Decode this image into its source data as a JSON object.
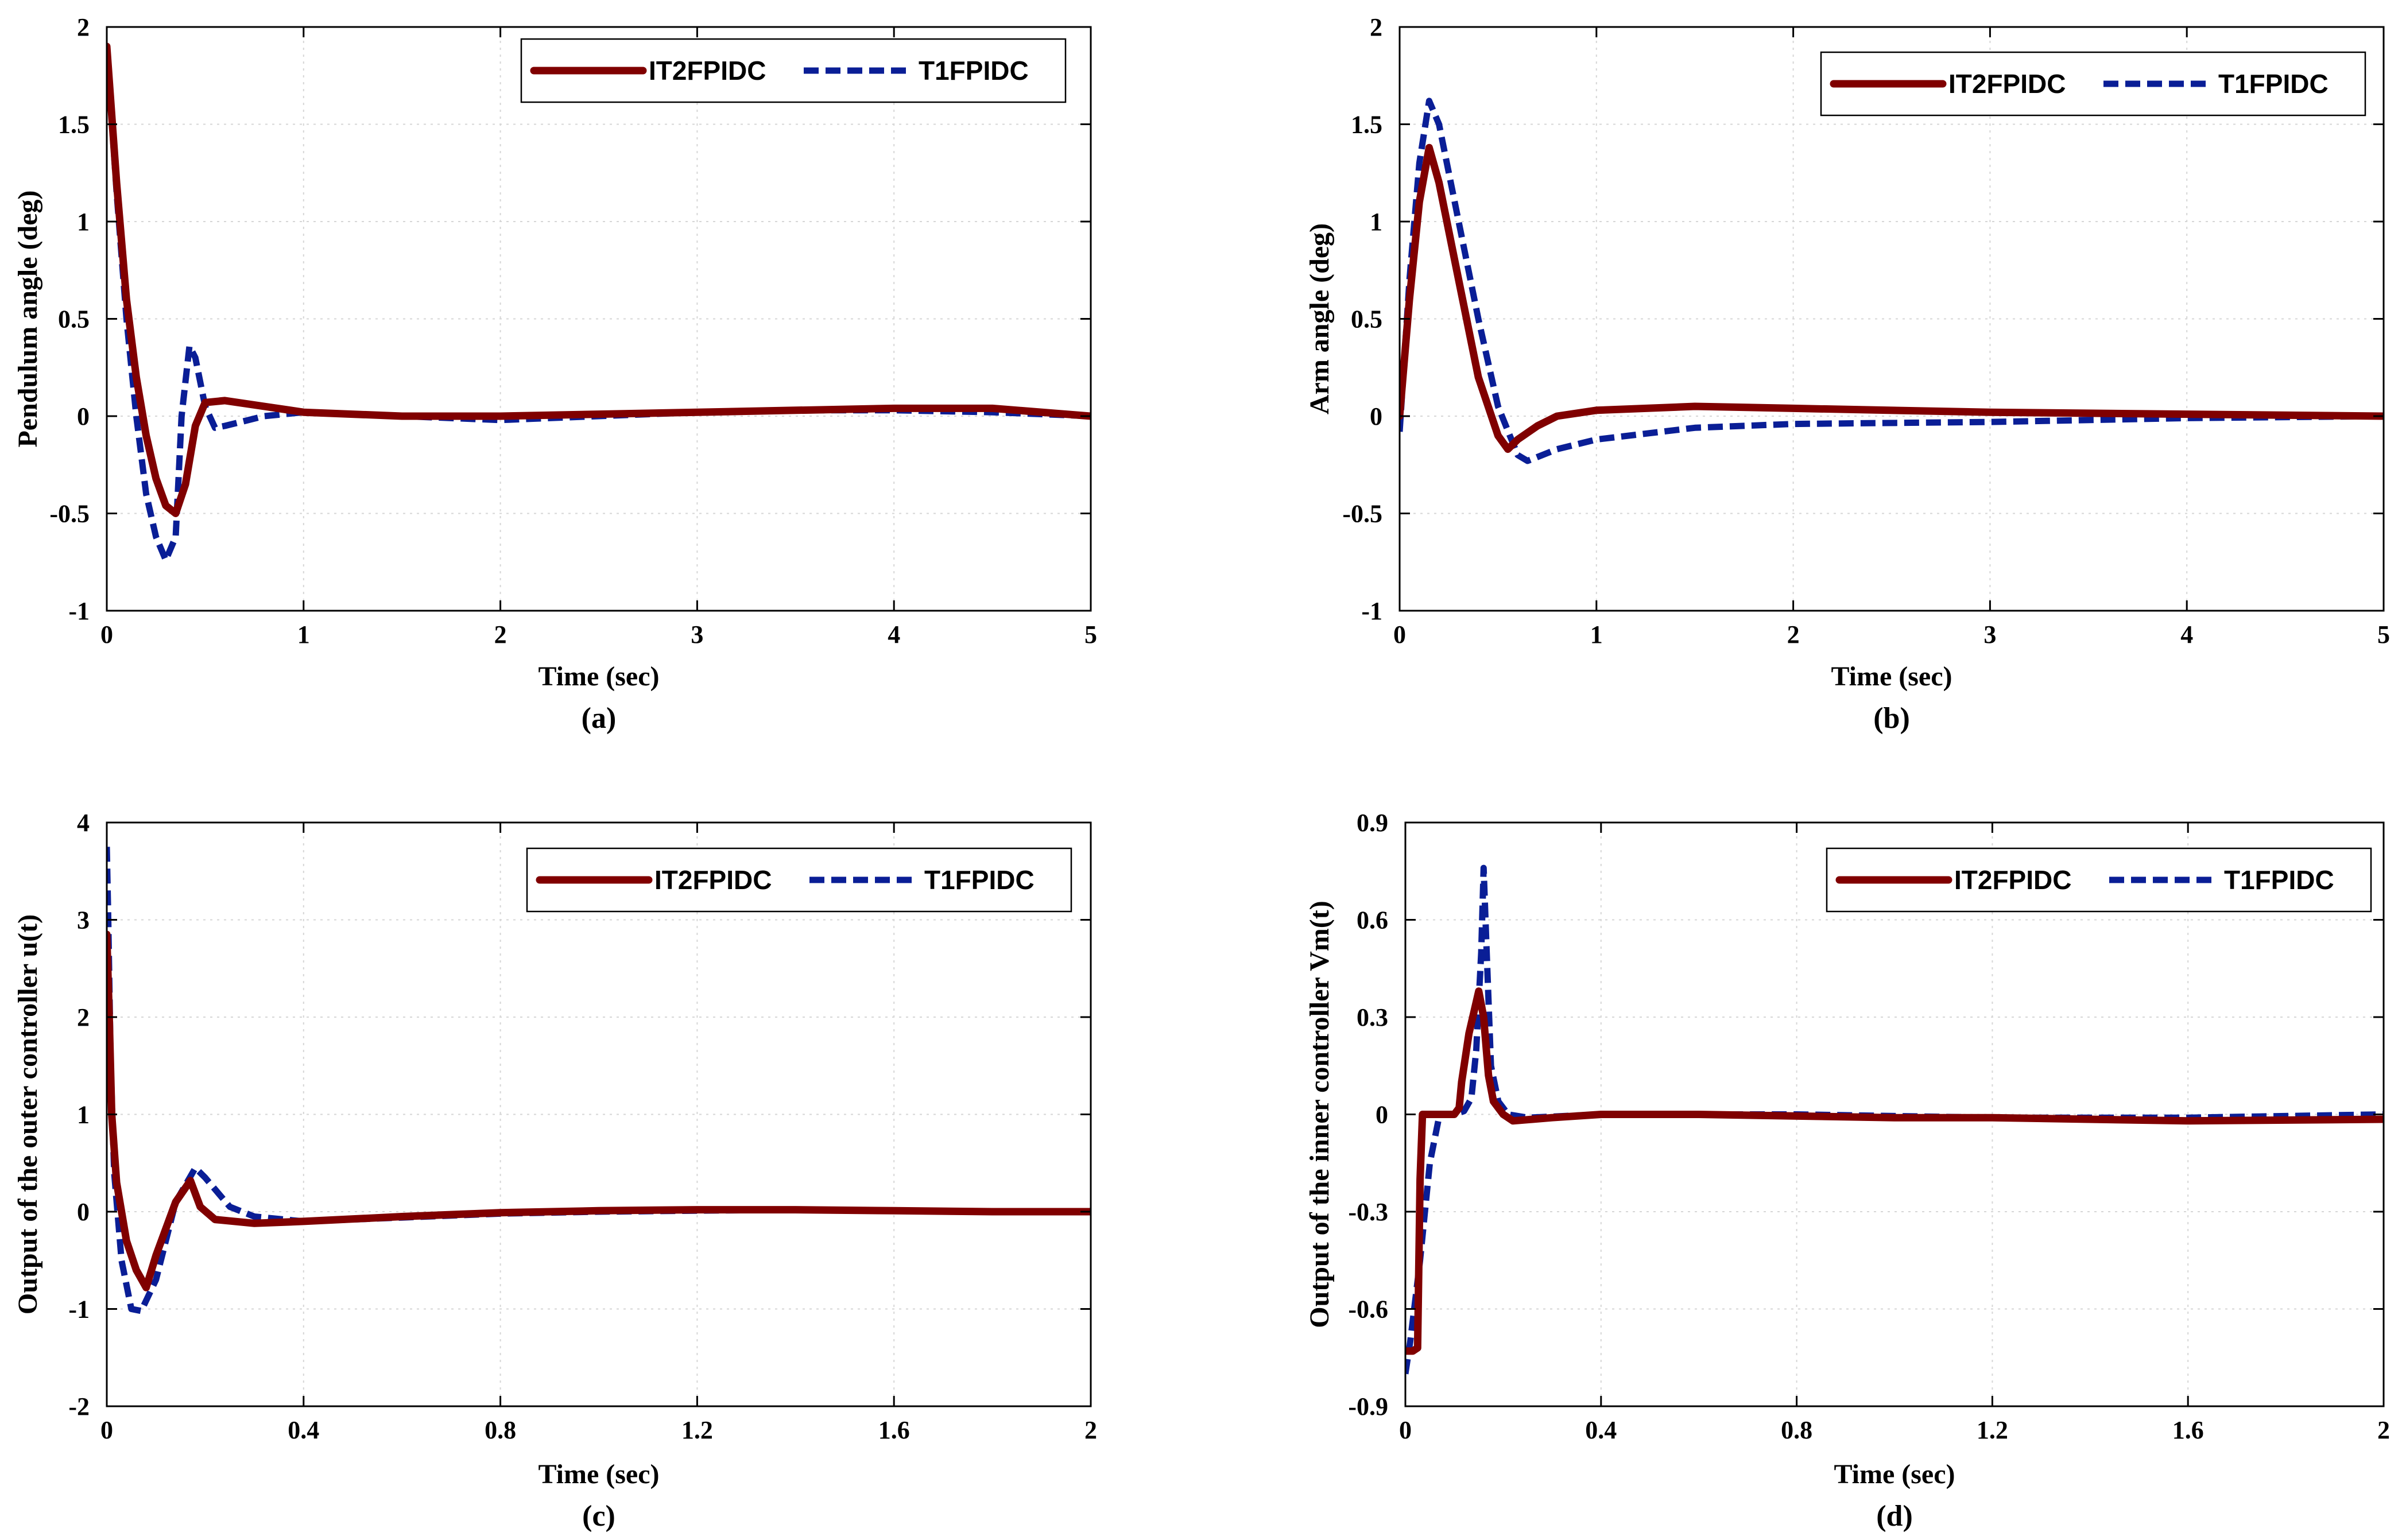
{
  "colors": {
    "it2": "#800000",
    "t1": "#0a1e96"
  },
  "chart_data": [
    {
      "id": "a",
      "type": "line",
      "panel_label": "(a)",
      "xlabel": "Time (sec)",
      "ylabel": "Pendulum angle (deg)",
      "xlim": [
        0,
        5
      ],
      "ylim": [
        -1,
        2
      ],
      "xticks": [
        0,
        1,
        2,
        3,
        4,
        5
      ],
      "xtick_labels": [
        "0",
        "1",
        "2",
        "3",
        "4",
        "5"
      ],
      "yticks": [
        -1,
        -0.5,
        0,
        0.5,
        1,
        1.5,
        2
      ],
      "ytick_labels": [
        "-1",
        "-0.5",
        "0",
        "0.5",
        "1",
        "1.5",
        "2"
      ],
      "grid": true,
      "legend_position": "top-right",
      "series": [
        {
          "name": "IT2FPIDC",
          "style": "solid",
          "color": "#800000",
          "x": [
            0,
            0.05,
            0.1,
            0.15,
            0.2,
            0.25,
            0.3,
            0.35,
            0.4,
            0.45,
            0.5,
            0.6,
            0.8,
            1.0,
            1.5,
            2.0,
            2.5,
            3.0,
            3.5,
            4.0,
            4.5,
            5.0
          ],
          "y": [
            1.9,
            1.2,
            0.6,
            0.2,
            -0.1,
            -0.32,
            -0.46,
            -0.5,
            -0.35,
            -0.05,
            0.07,
            0.08,
            0.05,
            0.02,
            0.0,
            0.0,
            0.01,
            0.02,
            0.03,
            0.04,
            0.04,
            0.0
          ]
        },
        {
          "name": "T1FPIDC",
          "style": "dashed",
          "color": "#0a1e96",
          "x": [
            0,
            0.05,
            0.1,
            0.15,
            0.2,
            0.25,
            0.3,
            0.35,
            0.38,
            0.42,
            0.45,
            0.5,
            0.55,
            0.6,
            0.8,
            1.0,
            1.5,
            2.0,
            2.5,
            3.0,
            3.5,
            4.0,
            4.5,
            5.0
          ],
          "y": [
            1.9,
            1.15,
            0.5,
            0.0,
            -0.4,
            -0.62,
            -0.74,
            -0.62,
            0.0,
            0.36,
            0.3,
            0.05,
            -0.06,
            -0.05,
            0.0,
            0.02,
            0.0,
            -0.02,
            0.0,
            0.02,
            0.03,
            0.03,
            0.02,
            0.0
          ]
        }
      ]
    },
    {
      "id": "b",
      "type": "line",
      "panel_label": "(b)",
      "xlabel": "Time (sec)",
      "ylabel": "Arm angle (deg)",
      "xlim": [
        0,
        5
      ],
      "ylim": [
        -1,
        2
      ],
      "xticks": [
        0,
        1,
        2,
        3,
        4,
        5
      ],
      "xtick_labels": [
        "0",
        "1",
        "2",
        "3",
        "4",
        "5"
      ],
      "yticks": [
        -1,
        -0.5,
        0,
        0.5,
        1,
        1.5,
        2
      ],
      "ytick_labels": [
        "-1",
        "-0.5",
        "0",
        "0.5",
        "1",
        "1.5",
        "2"
      ],
      "grid": true,
      "legend_position": "top-right",
      "series": [
        {
          "name": "IT2FPIDC",
          "style": "solid",
          "color": "#800000",
          "x": [
            0,
            0.05,
            0.1,
            0.15,
            0.2,
            0.3,
            0.4,
            0.5,
            0.55,
            0.6,
            0.7,
            0.8,
            1.0,
            1.5,
            2.0,
            3.0,
            4.0,
            5.0
          ],
          "y": [
            0.0,
            0.6,
            1.1,
            1.38,
            1.2,
            0.7,
            0.2,
            -0.1,
            -0.17,
            -0.12,
            -0.05,
            0.0,
            0.03,
            0.05,
            0.04,
            0.02,
            0.01,
            0.0
          ]
        },
        {
          "name": "T1FPIDC",
          "style": "dashed",
          "color": "#0a1e96",
          "x": [
            0,
            0.05,
            0.1,
            0.15,
            0.2,
            0.3,
            0.4,
            0.5,
            0.6,
            0.65,
            0.7,
            0.8,
            1.0,
            1.5,
            2.0,
            3.0,
            4.0,
            5.0
          ],
          "y": [
            -0.08,
            0.7,
            1.3,
            1.62,
            1.5,
            1.0,
            0.5,
            0.05,
            -0.2,
            -0.23,
            -0.21,
            -0.17,
            -0.12,
            -0.06,
            -0.04,
            -0.03,
            -0.01,
            0.0
          ]
        }
      ]
    },
    {
      "id": "c",
      "type": "line",
      "panel_label": "(c)",
      "xlabel": "Time (sec)",
      "ylabel": "Output of the outer controller u(t)",
      "xlim": [
        0,
        2
      ],
      "ylim": [
        -2,
        4
      ],
      "xticks": [
        0,
        0.4,
        0.8,
        1.2,
        1.6,
        2
      ],
      "xtick_labels": [
        "0",
        "0.4",
        "0.8",
        "1.2",
        "1.6",
        "2"
      ],
      "yticks": [
        -2,
        -1,
        0,
        1,
        2,
        3,
        4
      ],
      "ytick_labels": [
        "-2",
        "-1",
        "0",
        "1",
        "2",
        "3",
        "4"
      ],
      "grid": true,
      "legend_position": "top-right",
      "series": [
        {
          "name": "IT2FPIDC",
          "style": "solid",
          "color": "#800000",
          "x": [
            0,
            0.005,
            0.01,
            0.02,
            0.04,
            0.06,
            0.08,
            0.1,
            0.14,
            0.17,
            0.19,
            0.22,
            0.3,
            0.4,
            0.6,
            0.8,
            1.0,
            1.2,
            1.4,
            1.6,
            1.8,
            2.0
          ],
          "y": [
            2.85,
            2.0,
            1.0,
            0.3,
            -0.3,
            -0.6,
            -0.78,
            -0.45,
            0.1,
            0.32,
            0.05,
            -0.08,
            -0.12,
            -0.1,
            -0.05,
            -0.01,
            0.01,
            0.02,
            0.02,
            0.01,
            0.0,
            0.0
          ]
        },
        {
          "name": "T1FPIDC",
          "style": "dashed",
          "color": "#0a1e96",
          "x": [
            0,
            0.003,
            0.008,
            0.015,
            0.03,
            0.05,
            0.07,
            0.1,
            0.14,
            0.18,
            0.2,
            0.25,
            0.3,
            0.4,
            0.6,
            0.8,
            1.0,
            1.2,
            1.4,
            1.6,
            1.8,
            2.0
          ],
          "y": [
            3.75,
            3.0,
            1.5,
            0.4,
            -0.5,
            -1.0,
            -1.02,
            -0.7,
            0.1,
            0.45,
            0.35,
            0.05,
            -0.05,
            -0.1,
            -0.06,
            -0.02,
            0.0,
            0.01,
            0.02,
            0.01,
            0.0,
            0.0
          ]
        }
      ]
    },
    {
      "id": "d",
      "type": "line",
      "panel_label": "(d)",
      "xlabel": "Time (sec)",
      "ylabel": "Output of the inner controller Vm(t)",
      "xlim": [
        0,
        2
      ],
      "ylim": [
        -0.9,
        0.9
      ],
      "xticks": [
        0,
        0.4,
        0.8,
        1.2,
        1.6,
        2
      ],
      "xtick_labels": [
        "0",
        "0.4",
        "0.8",
        "1.2",
        "1.6",
        "2"
      ],
      "yticks": [
        -0.9,
        -0.6,
        -0.3,
        0,
        0.3,
        0.6,
        0.9
      ],
      "ytick_labels": [
        "-0.9",
        "-0.6",
        "-0.3",
        "0",
        "0.3",
        "0.6",
        "0.9"
      ],
      "grid": true,
      "legend_position": "top-right",
      "series": [
        {
          "name": "IT2FPIDC",
          "style": "solid",
          "color": "#800000",
          "x": [
            0,
            0.015,
            0.025,
            0.03,
            0.035,
            0.06,
            0.1,
            0.11,
            0.115,
            0.13,
            0.15,
            0.16,
            0.17,
            0.18,
            0.2,
            0.22,
            0.3,
            0.4,
            0.6,
            1.0,
            1.2,
            1.6,
            2.0
          ],
          "y": [
            -0.73,
            -0.73,
            -0.72,
            -0.2,
            0.0,
            0.0,
            0.0,
            0.02,
            0.1,
            0.25,
            0.38,
            0.3,
            0.12,
            0.04,
            0.0,
            -0.02,
            -0.01,
            0.0,
            0.0,
            -0.01,
            -0.01,
            -0.02,
            -0.015
          ]
        },
        {
          "name": "T1FPIDC",
          "style": "dashed",
          "color": "#0a1e96",
          "x": [
            0,
            0.01,
            0.03,
            0.05,
            0.07,
            0.1,
            0.12,
            0.135,
            0.145,
            0.155,
            0.16,
            0.165,
            0.175,
            0.19,
            0.21,
            0.25,
            0.4,
            0.8,
            1.2,
            1.6,
            2.0
          ],
          "y": [
            -0.8,
            -0.7,
            -0.45,
            -0.15,
            0.0,
            0.0,
            0.01,
            0.05,
            0.2,
            0.5,
            0.76,
            0.55,
            0.15,
            0.04,
            0.0,
            -0.01,
            0.0,
            0.0,
            -0.01,
            -0.01,
            0.0
          ]
        }
      ]
    }
  ]
}
